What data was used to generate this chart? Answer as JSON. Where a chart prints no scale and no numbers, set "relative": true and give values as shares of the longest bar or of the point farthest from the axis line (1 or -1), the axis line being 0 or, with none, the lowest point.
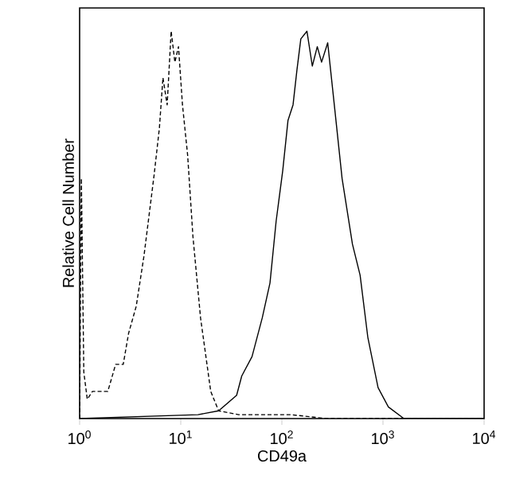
{
  "chart_data": {
    "type": "line",
    "xlabel": "CD49a",
    "ylabel": "Relative Cell Number",
    "relative": true,
    "log": "x",
    "grid": false,
    "marker": "none",
    "xlim": [
      1,
      10000
    ],
    "xticks": [
      {
        "value": 1,
        "label": "10$^{0}$"
      },
      {
        "value": 10,
        "label": "10$^{1}$"
      },
      {
        "value": 100,
        "label": "10$^{2}$"
      },
      {
        "value": 1000,
        "label": "10$^{3}$"
      },
      {
        "value": 10000,
        "label": "10$^{4}$"
      }
    ],
    "series": [
      {
        "color": "#000000",
        "line_style": "dashed",
        "x": [
          1.0,
          1.04,
          1.1,
          1.19,
          1.34,
          1.9,
          2.27,
          2.7,
          3.05,
          3.63,
          4.33,
          5.46,
          6.15,
          6.67,
          7.34,
          8.04,
          8.75,
          9.5,
          10.4,
          11.7,
          13.2,
          15.7,
          19.8,
          23.7,
          37.4,
          123,
          277,
          10000
        ],
        "values": [
          0,
          0.62,
          0.12,
          0.05,
          0.07,
          0.07,
          0.14,
          0.14,
          0.22,
          0.29,
          0.42,
          0.63,
          0.75,
          0.88,
          0.81,
          1.0,
          0.92,
          0.96,
          0.81,
          0.68,
          0.47,
          0.26,
          0.07,
          0.02,
          0.01,
          0.01,
          0,
          0
        ]
      },
      {
        "color": "#000000",
        "line_style": "solid",
        "x": [
          1.0,
          14.8,
          23.7,
          35.7,
          40.1,
          50.7,
          64,
          76.3,
          87.8,
          102,
          115,
          129,
          141,
          154,
          177,
          200,
          224,
          247,
          284,
          330,
          394,
          499,
          594,
          708,
          894,
          1130,
          1610,
          10000
        ],
        "values": [
          0,
          0.01,
          0.02,
          0.06,
          0.11,
          0.16,
          0.26,
          0.35,
          0.51,
          0.64,
          0.77,
          0.81,
          0.9,
          0.98,
          1.0,
          0.91,
          0.96,
          0.92,
          0.97,
          0.81,
          0.62,
          0.45,
          0.37,
          0.21,
          0.08,
          0.03,
          0,
          0
        ]
      }
    ]
  }
}
